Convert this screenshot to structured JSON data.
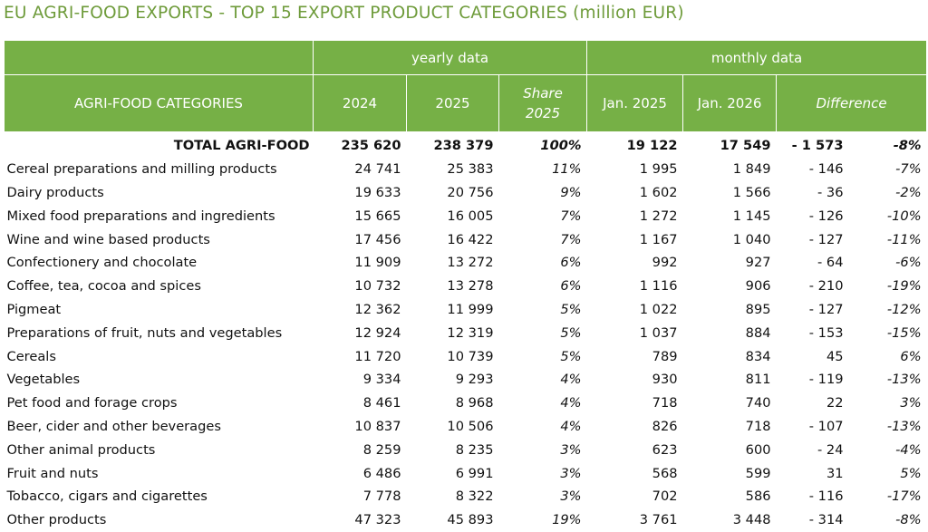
{
  "title": "EU AGRI-FOOD EXPORTS - TOP 15 EXPORT PRODUCT CATEGORIES (million EUR)",
  "header": {
    "yearly_group": "yearly data",
    "monthly_group": "monthly data",
    "categories_label": "AGRI-FOOD CATEGORIES",
    "col_2024": "2024",
    "col_2025": "2025",
    "share_line1": "Share",
    "share_line2": "2025",
    "col_jan2025": "Jan. 2025",
    "col_jan2026": "Jan. 2026",
    "difference": "Difference"
  },
  "total": {
    "label": "TOTAL AGRI-FOOD",
    "y2024": "235 620",
    "y2025": "238 379",
    "share": "100%",
    "jan2025": "19 122",
    "jan2026": "17 549",
    "diff_abs": "- 1 573",
    "diff_pct": "-8%"
  },
  "rows": [
    {
      "label": "Cereal preparations and milling products",
      "y2024": "24 741",
      "y2025": "25 383",
      "share": "11%",
      "jan2025": "1 995",
      "jan2026": "1 849",
      "diff_abs": "- 146",
      "diff_pct": "-7%"
    },
    {
      "label": "Dairy products",
      "y2024": "19 633",
      "y2025": "20 756",
      "share": "9%",
      "jan2025": "1 602",
      "jan2026": "1 566",
      "diff_abs": "- 36",
      "diff_pct": "-2%"
    },
    {
      "label": "Mixed food preparations and ingredients",
      "y2024": "15 665",
      "y2025": "16 005",
      "share": "7%",
      "jan2025": "1 272",
      "jan2026": "1 145",
      "diff_abs": "- 126",
      "diff_pct": "-10%"
    },
    {
      "label": "Wine and wine based products",
      "y2024": "17 456",
      "y2025": "16 422",
      "share": "7%",
      "jan2025": "1 167",
      "jan2026": "1 040",
      "diff_abs": "- 127",
      "diff_pct": "-11%"
    },
    {
      "label": "Confectionery and chocolate",
      "y2024": "11 909",
      "y2025": "13 272",
      "share": "6%",
      "jan2025": "992",
      "jan2026": "927",
      "diff_abs": "- 64",
      "diff_pct": "-6%"
    },
    {
      "label": "Coffee, tea, cocoa and spices",
      "y2024": "10 732",
      "y2025": "13 278",
      "share": "6%",
      "jan2025": "1 116",
      "jan2026": "906",
      "diff_abs": "- 210",
      "diff_pct": "-19%"
    },
    {
      "label": "Pigmeat",
      "y2024": "12 362",
      "y2025": "11 999",
      "share": "5%",
      "jan2025": "1 022",
      "jan2026": "895",
      "diff_abs": "- 127",
      "diff_pct": "-12%"
    },
    {
      "label": "Preparations of fruit, nuts and vegetables",
      "y2024": "12 924",
      "y2025": "12 319",
      "share": "5%",
      "jan2025": "1 037",
      "jan2026": "884",
      "diff_abs": "- 153",
      "diff_pct": "-15%"
    },
    {
      "label": "Cereals",
      "y2024": "11 720",
      "y2025": "10 739",
      "share": "5%",
      "jan2025": "789",
      "jan2026": "834",
      "diff_abs": "45",
      "diff_pct": "6%"
    },
    {
      "label": "Vegetables",
      "y2024": "9 334",
      "y2025": "9 293",
      "share": "4%",
      "jan2025": "930",
      "jan2026": "811",
      "diff_abs": "- 119",
      "diff_pct": "-13%"
    },
    {
      "label": "Pet food and forage crops",
      "y2024": "8 461",
      "y2025": "8 968",
      "share": "4%",
      "jan2025": "718",
      "jan2026": "740",
      "diff_abs": "22",
      "diff_pct": "3%"
    },
    {
      "label": "Beer, cider and other beverages",
      "y2024": "10 837",
      "y2025": "10 506",
      "share": "4%",
      "jan2025": "826",
      "jan2026": "718",
      "diff_abs": "- 107",
      "diff_pct": "-13%"
    },
    {
      "label": "Other animal products",
      "y2024": "8 259",
      "y2025": "8 235",
      "share": "3%",
      "jan2025": "623",
      "jan2026": "600",
      "diff_abs": "- 24",
      "diff_pct": "-4%"
    },
    {
      "label": "Fruit and nuts",
      "y2024": "6 486",
      "y2025": "6 991",
      "share": "3%",
      "jan2025": "568",
      "jan2026": "599",
      "diff_abs": "31",
      "diff_pct": "5%"
    },
    {
      "label": "Tobacco, cigars and cigarettes",
      "y2024": "7 778",
      "y2025": "8 322",
      "share": "3%",
      "jan2025": "702",
      "jan2026": "586",
      "diff_abs": "- 116",
      "diff_pct": "-17%"
    },
    {
      "label": "Other products",
      "y2024": "47 323",
      "y2025": "45 893",
      "share": "19%",
      "jan2025": "3 761",
      "jan2026": "3 448",
      "diff_abs": "- 314",
      "diff_pct": "-8%"
    }
  ]
}
